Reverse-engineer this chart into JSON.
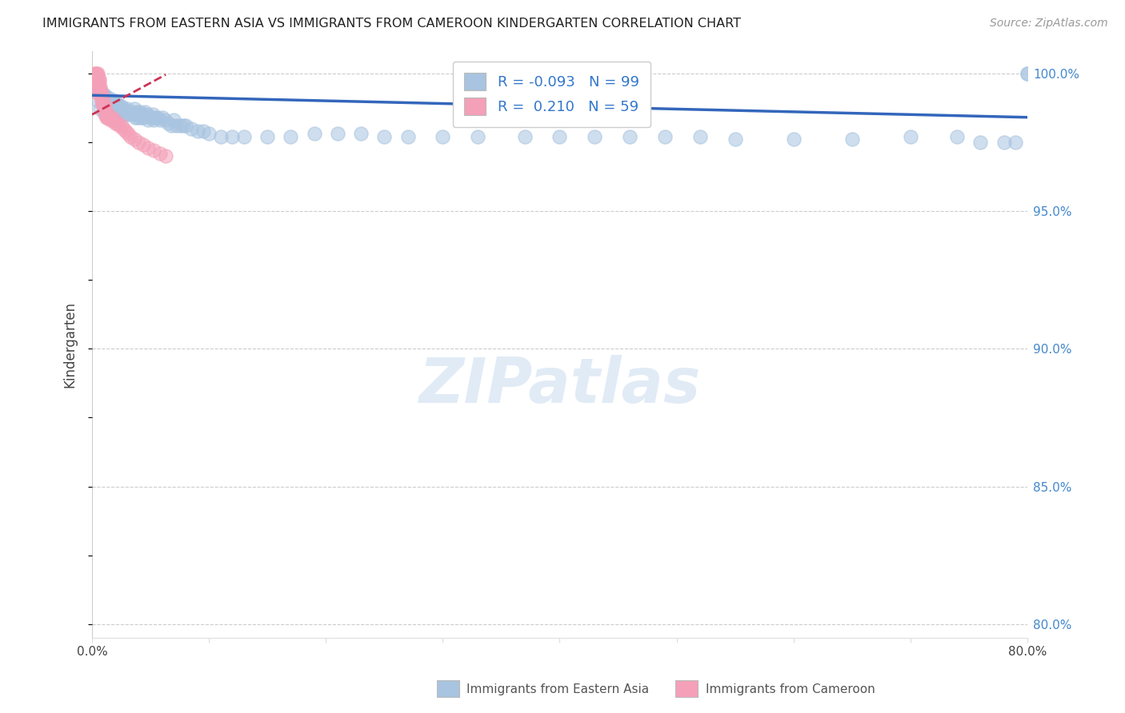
{
  "title": "IMMIGRANTS FROM EASTERN ASIA VS IMMIGRANTS FROM CAMEROON KINDERGARTEN CORRELATION CHART",
  "source": "Source: ZipAtlas.com",
  "ylabel": "Kindergarten",
  "xlim": [
    0.0,
    0.8
  ],
  "ylim": [
    0.795,
    1.008
  ],
  "xticks": [
    0.0,
    0.1,
    0.2,
    0.3,
    0.4,
    0.5,
    0.6,
    0.7,
    0.8
  ],
  "xticklabels": [
    "0.0%",
    "",
    "",
    "",
    "",
    "",
    "",
    "",
    "80.0%"
  ],
  "yticks_right": [
    0.8,
    0.85,
    0.9,
    0.95,
    1.0
  ],
  "yticklabels_right": [
    "80.0%",
    "85.0%",
    "90.0%",
    "95.0%",
    "100.0%"
  ],
  "blue_color": "#a8c4e0",
  "pink_color": "#f4a0b8",
  "blue_line_color": "#3366bb",
  "pink_line_color": "#cc3355",
  "legend_R_blue": "-0.093",
  "legend_N_blue": "99",
  "legend_R_pink": "0.210",
  "legend_N_pink": "59",
  "watermark": "ZIPatlas",
  "blue_x": [
    0.005,
    0.007,
    0.008,
    0.009,
    0.01,
    0.01,
    0.01,
    0.011,
    0.011,
    0.012,
    0.012,
    0.013,
    0.013,
    0.014,
    0.015,
    0.015,
    0.015,
    0.016,
    0.016,
    0.017,
    0.017,
    0.018,
    0.018,
    0.018,
    0.019,
    0.02,
    0.02,
    0.021,
    0.022,
    0.022,
    0.023,
    0.024,
    0.025,
    0.026,
    0.027,
    0.028,
    0.03,
    0.031,
    0.033,
    0.035,
    0.036,
    0.037,
    0.038,
    0.039,
    0.04,
    0.041,
    0.042,
    0.043,
    0.044,
    0.045,
    0.047,
    0.048,
    0.05,
    0.052,
    0.053,
    0.054,
    0.056,
    0.058,
    0.06,
    0.062,
    0.065,
    0.068,
    0.07,
    0.072,
    0.075,
    0.078,
    0.08,
    0.085,
    0.09,
    0.095,
    0.1,
    0.11,
    0.12,
    0.13,
    0.15,
    0.17,
    0.19,
    0.21,
    0.23,
    0.25,
    0.27,
    0.3,
    0.33,
    0.37,
    0.4,
    0.43,
    0.46,
    0.49,
    0.52,
    0.55,
    0.6,
    0.65,
    0.7,
    0.74,
    0.76,
    0.78,
    0.79,
    0.8,
    0.8
  ],
  "blue_y": [
    0.99,
    0.987,
    0.993,
    0.99,
    0.992,
    0.989,
    0.986,
    0.992,
    0.988,
    0.991,
    0.987,
    0.99,
    0.985,
    0.988,
    0.991,
    0.988,
    0.984,
    0.99,
    0.987,
    0.99,
    0.986,
    0.99,
    0.988,
    0.984,
    0.988,
    0.99,
    0.987,
    0.988,
    0.989,
    0.985,
    0.988,
    0.986,
    0.988,
    0.985,
    0.987,
    0.985,
    0.987,
    0.985,
    0.986,
    0.985,
    0.987,
    0.984,
    0.986,
    0.984,
    0.985,
    0.986,
    0.984,
    0.985,
    0.984,
    0.986,
    0.985,
    0.983,
    0.984,
    0.985,
    0.983,
    0.984,
    0.984,
    0.983,
    0.984,
    0.983,
    0.982,
    0.981,
    0.983,
    0.981,
    0.981,
    0.981,
    0.981,
    0.98,
    0.979,
    0.979,
    0.978,
    0.977,
    0.977,
    0.977,
    0.977,
    0.977,
    0.978,
    0.978,
    0.978,
    0.977,
    0.977,
    0.977,
    0.977,
    0.977,
    0.977,
    0.977,
    0.977,
    0.977,
    0.977,
    0.976,
    0.976,
    0.976,
    0.977,
    0.977,
    0.975,
    0.975,
    0.975,
    1.0,
    1.0
  ],
  "pink_x": [
    0.002,
    0.002,
    0.003,
    0.003,
    0.003,
    0.004,
    0.004,
    0.004,
    0.004,
    0.004,
    0.004,
    0.005,
    0.005,
    0.005,
    0.005,
    0.005,
    0.005,
    0.005,
    0.005,
    0.006,
    0.006,
    0.006,
    0.007,
    0.007,
    0.007,
    0.008,
    0.008,
    0.008,
    0.009,
    0.009,
    0.01,
    0.01,
    0.01,
    0.011,
    0.011,
    0.012,
    0.012,
    0.013,
    0.014,
    0.015,
    0.016,
    0.017,
    0.018,
    0.019,
    0.02,
    0.021,
    0.023,
    0.025,
    0.027,
    0.029,
    0.031,
    0.033,
    0.036,
    0.04,
    0.044,
    0.048,
    0.053,
    0.058,
    0.063
  ],
  "pink_y": [
    1.0,
    0.999,
    1.0,
    0.999,
    0.998,
    1.0,
    0.999,
    0.998,
    0.997,
    0.997,
    0.996,
    1.0,
    0.999,
    0.998,
    0.997,
    0.996,
    0.995,
    0.994,
    0.993,
    0.998,
    0.997,
    0.995,
    0.995,
    0.994,
    0.992,
    0.993,
    0.992,
    0.99,
    0.991,
    0.989,
    0.989,
    0.988,
    0.987,
    0.987,
    0.985,
    0.986,
    0.984,
    0.984,
    0.984,
    0.984,
    0.983,
    0.984,
    0.983,
    0.983,
    0.982,
    0.982,
    0.981,
    0.981,
    0.98,
    0.979,
    0.978,
    0.977,
    0.976,
    0.975,
    0.974,
    0.973,
    0.972,
    0.971,
    0.97
  ]
}
